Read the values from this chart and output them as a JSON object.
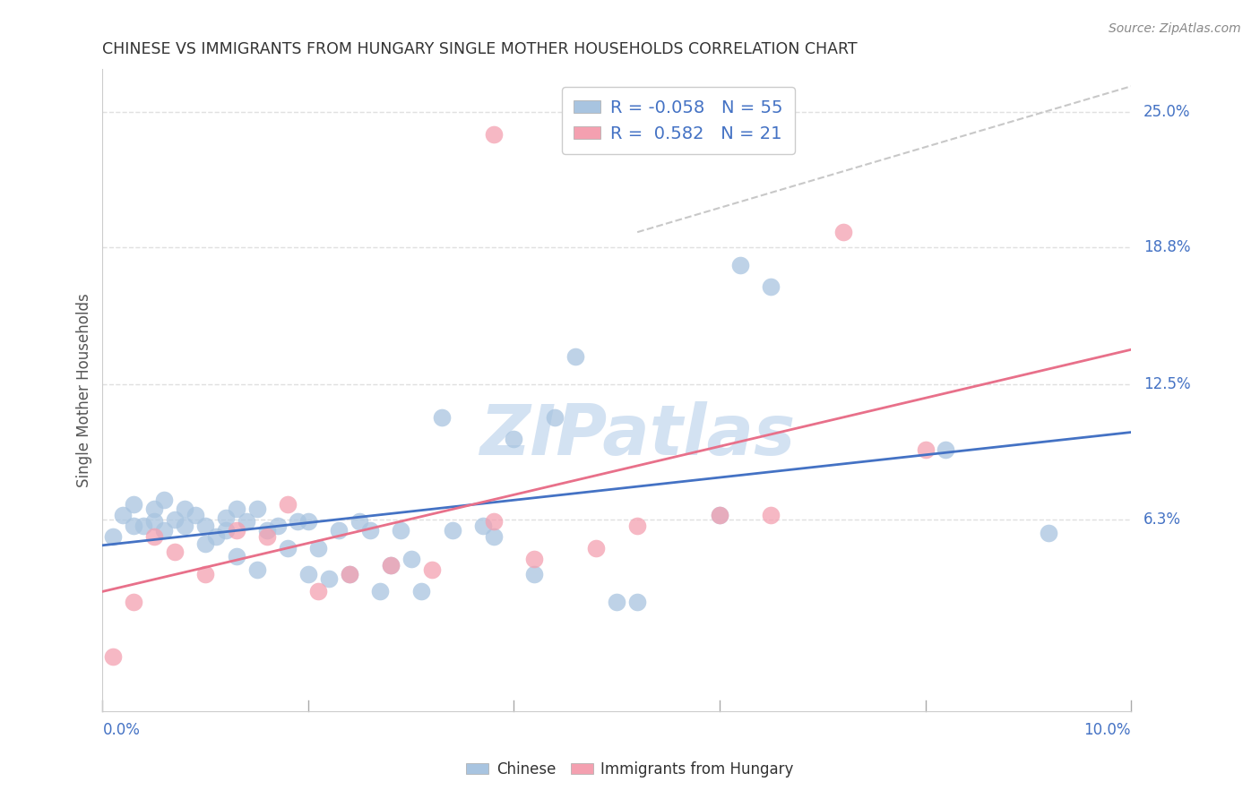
{
  "title": "CHINESE VS IMMIGRANTS FROM HUNGARY SINGLE MOTHER HOUSEHOLDS CORRELATION CHART",
  "source": "Source: ZipAtlas.com",
  "ylabel": "Single Mother Households",
  "ytick_labels": [
    "6.3%",
    "12.5%",
    "18.8%",
    "25.0%"
  ],
  "ytick_values": [
    0.063,
    0.125,
    0.188,
    0.25
  ],
  "xlim": [
    0.0,
    0.1
  ],
  "ylim": [
    -0.025,
    0.27
  ],
  "chinese_R": -0.058,
  "chinese_N": 55,
  "hungary_R": 0.582,
  "hungary_N": 21,
  "chinese_color": "#a8c4e0",
  "hungary_color": "#f4a0b0",
  "trend_chinese_color": "#4472c4",
  "trend_hungary_color": "#e8708a",
  "dash_color": "#c8c8c8",
  "background_color": "#ffffff",
  "grid_color": "#e0e0e0",
  "chinese_x": [
    0.001,
    0.002,
    0.003,
    0.003,
    0.004,
    0.005,
    0.005,
    0.006,
    0.006,
    0.007,
    0.008,
    0.008,
    0.009,
    0.01,
    0.01,
    0.011,
    0.012,
    0.012,
    0.013,
    0.013,
    0.014,
    0.015,
    0.015,
    0.016,
    0.017,
    0.018,
    0.019,
    0.02,
    0.02,
    0.021,
    0.022,
    0.023,
    0.024,
    0.025,
    0.026,
    0.027,
    0.028,
    0.029,
    0.03,
    0.031,
    0.033,
    0.034,
    0.037,
    0.038,
    0.04,
    0.042,
    0.044,
    0.046,
    0.05,
    0.052,
    0.06,
    0.062,
    0.065,
    0.082,
    0.092
  ],
  "chinese_y": [
    0.055,
    0.065,
    0.06,
    0.07,
    0.06,
    0.068,
    0.062,
    0.058,
    0.072,
    0.063,
    0.068,
    0.06,
    0.065,
    0.06,
    0.052,
    0.055,
    0.064,
    0.058,
    0.046,
    0.068,
    0.062,
    0.04,
    0.068,
    0.058,
    0.06,
    0.05,
    0.062,
    0.038,
    0.062,
    0.05,
    0.036,
    0.058,
    0.038,
    0.062,
    0.058,
    0.03,
    0.042,
    0.058,
    0.045,
    0.03,
    0.11,
    0.058,
    0.06,
    0.055,
    0.1,
    0.038,
    0.11,
    0.138,
    0.025,
    0.025,
    0.065,
    0.18,
    0.17,
    0.095,
    0.057
  ],
  "hungary_x": [
    0.001,
    0.003,
    0.005,
    0.007,
    0.01,
    0.013,
    0.016,
    0.018,
    0.021,
    0.024,
    0.028,
    0.032,
    0.038,
    0.042,
    0.048,
    0.052,
    0.06,
    0.065,
    0.072,
    0.08,
    0.038
  ],
  "hungary_y": [
    0.0,
    0.025,
    0.055,
    0.048,
    0.038,
    0.058,
    0.055,
    0.07,
    0.03,
    0.038,
    0.042,
    0.04,
    0.062,
    0.045,
    0.05,
    0.06,
    0.065,
    0.065,
    0.195,
    0.095,
    0.24
  ]
}
